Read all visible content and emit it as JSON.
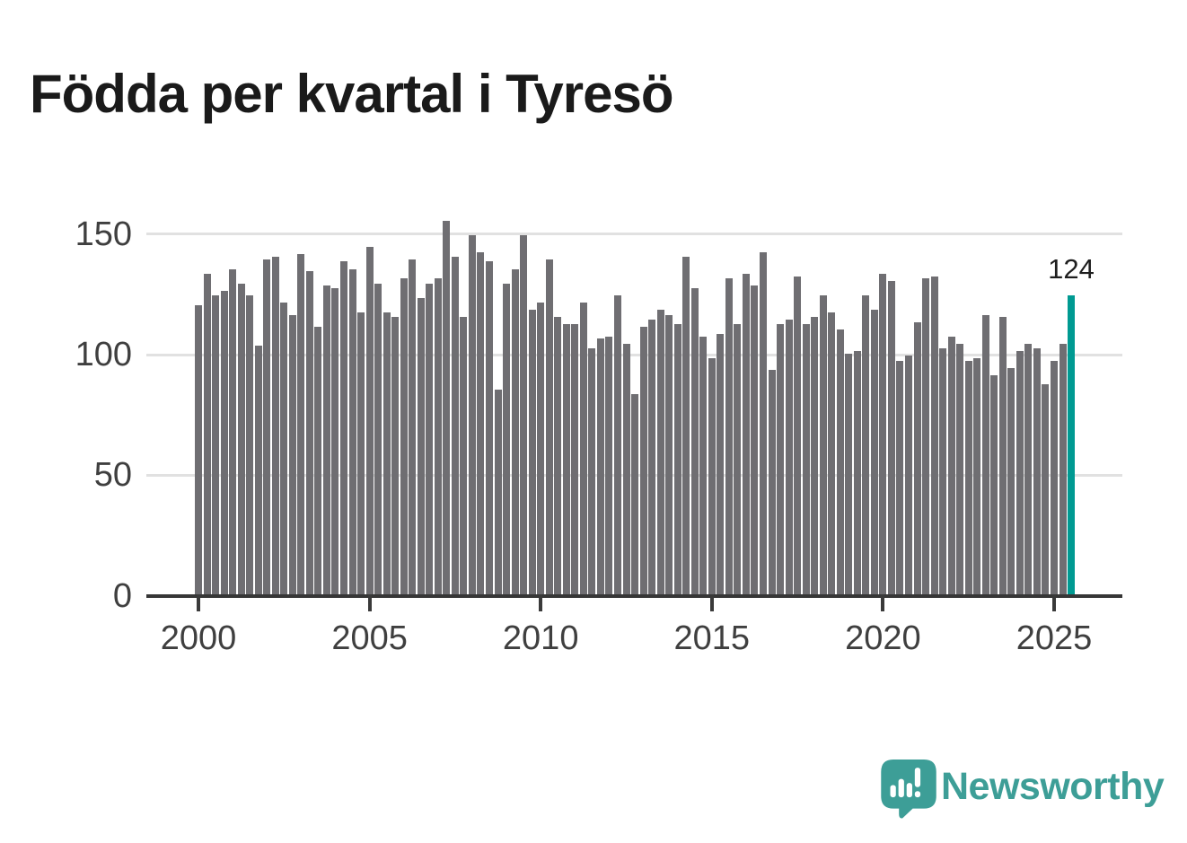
{
  "title": "Födda per kvartal i Tyresö",
  "annotation": {
    "label": "124"
  },
  "branding": {
    "name": "Newsworthy",
    "icon": "newsworthy-speech-bubble-bar-chart-icon"
  },
  "colors": {
    "background": "#ffffff",
    "bar": "#6f6e72",
    "highlight": "#009a92",
    "title": "#1a1a1a",
    "grid": "#e1e1e1",
    "axis": "#363636",
    "tick": "#3a3a3a",
    "tick_label": "#3f3f3f",
    "brand": "#3d9e97",
    "annotation_text": "#1e1e1e"
  },
  "chart_data": {
    "type": "bar",
    "title": "Födda per kvartal i Tyresö",
    "x_unit": "quarter",
    "x_start_label": "2000",
    "x_end_label": "2025",
    "x_tick_labels": [
      "2000",
      "2005",
      "2010",
      "2015",
      "2020",
      "2025"
    ],
    "x_tick_every_n_bars": 20,
    "y_tick_labels": [
      0,
      50,
      100,
      150
    ],
    "ylim": [
      0,
      160
    ],
    "grid": "horizontal",
    "legend": "none",
    "highlighted_last_bar": {
      "value": 124,
      "label": "124"
    },
    "values": [
      120,
      133,
      124,
      126,
      135,
      129,
      124,
      103,
      139,
      140,
      121,
      116,
      141,
      134,
      111,
      128,
      127,
      138,
      135,
      117,
      144,
      129,
      117,
      115,
      131,
      139,
      123,
      129,
      131,
      155,
      140,
      115,
      149,
      142,
      138,
      85,
      129,
      135,
      149,
      118,
      121,
      139,
      115,
      112,
      112,
      121,
      102,
      106,
      107,
      124,
      104,
      83,
      111,
      114,
      118,
      116,
      112,
      140,
      127,
      107,
      98,
      108,
      131,
      112,
      133,
      128,
      142,
      93,
      112,
      114,
      132,
      112,
      115,
      124,
      117,
      110,
      100,
      101,
      124,
      118,
      133,
      130,
      97,
      99,
      113,
      131,
      132,
      102,
      107,
      104,
      97,
      98,
      116,
      91,
      115,
      94,
      101,
      104,
      102,
      87,
      97,
      104,
      124
    ]
  }
}
